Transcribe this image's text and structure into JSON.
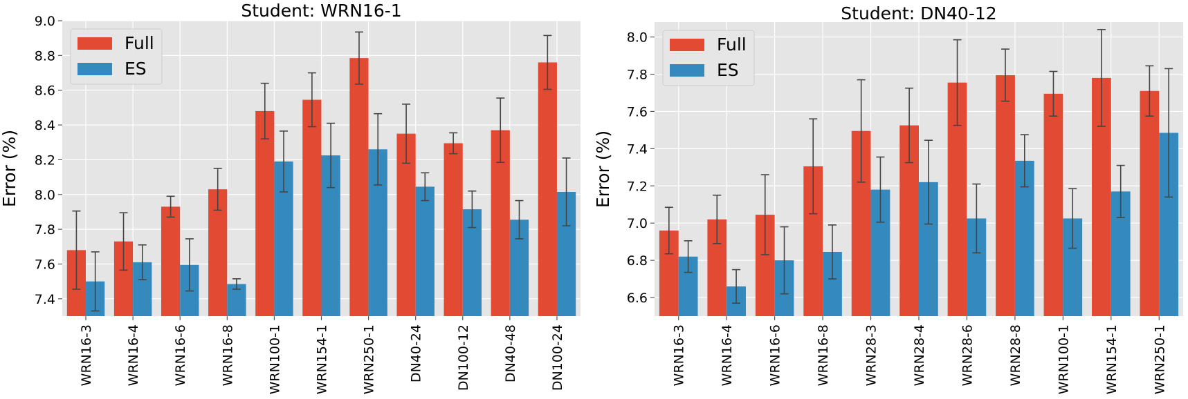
{
  "colors": {
    "full": "#E24A33",
    "es": "#348ABD",
    "plot_bg": "#E5E5E5",
    "grid": "#FFFFFF",
    "error_bar": "#444444"
  },
  "chart_data": [
    {
      "type": "bar",
      "title": "Student: WRN16-1",
      "ylabel": "Error (%)",
      "xlabel": "",
      "ylim": [
        7.3,
        9.0
      ],
      "yticks": [
        "7.4",
        "7.6",
        "7.8",
        "8.0",
        "8.2",
        "8.4",
        "8.6",
        "8.8",
        "9.0"
      ],
      "categories": [
        "WRN16-3",
        "WRN16-4",
        "WRN16-6",
        "WRN16-8",
        "WRN100-1",
        "WRN154-1",
        "WRN250-1",
        "DN40-24",
        "DN100-12",
        "DN40-48",
        "DN100-24"
      ],
      "grid": true,
      "legend": "top-left",
      "series": [
        {
          "name": "Full",
          "values": [
            7.68,
            7.73,
            7.93,
            8.03,
            8.48,
            8.545,
            8.785,
            8.35,
            8.295,
            8.37,
            8.76
          ],
          "err": [
            0.225,
            0.165,
            0.06,
            0.12,
            0.16,
            0.155,
            0.15,
            0.17,
            0.06,
            0.185,
            0.155
          ]
        },
        {
          "name": "ES",
          "values": [
            7.5,
            7.61,
            7.595,
            7.485,
            8.19,
            8.225,
            8.26,
            8.045,
            7.915,
            7.855,
            8.015
          ],
          "err": [
            0.17,
            0.1,
            0.15,
            0.03,
            0.175,
            0.185,
            0.205,
            0.08,
            0.105,
            0.11,
            0.195
          ]
        }
      ]
    },
    {
      "type": "bar",
      "title": "Student: DN40-12",
      "ylabel": "Error (%)",
      "xlabel": "",
      "ylim": [
        6.5,
        8.08
      ],
      "yticks": [
        "6.6",
        "6.8",
        "7.0",
        "7.2",
        "7.4",
        "7.6",
        "7.8",
        "8.0"
      ],
      "categories": [
        "WRN16-3",
        "WRN16-4",
        "WRN16-6",
        "WRN16-8",
        "WRN28-3",
        "WRN28-4",
        "WRN28-6",
        "WRN28-8",
        "WRN100-1",
        "WRN154-1",
        "WRN250-1"
      ],
      "grid": true,
      "legend": "top-left",
      "series": [
        {
          "name": "Full",
          "values": [
            6.96,
            7.02,
            7.045,
            7.305,
            7.495,
            7.525,
            7.755,
            7.795,
            7.695,
            7.78,
            7.71
          ],
          "err": [
            0.125,
            0.13,
            0.215,
            0.255,
            0.275,
            0.2,
            0.23,
            0.14,
            0.12,
            0.26,
            0.135
          ]
        },
        {
          "name": "ES",
          "values": [
            6.82,
            6.66,
            6.8,
            6.845,
            7.18,
            7.22,
            7.025,
            7.335,
            7.025,
            7.17,
            7.485
          ],
          "err": [
            0.085,
            0.09,
            0.18,
            0.145,
            0.175,
            0.225,
            0.185,
            0.14,
            0.16,
            0.14,
            0.345
          ]
        }
      ]
    }
  ]
}
